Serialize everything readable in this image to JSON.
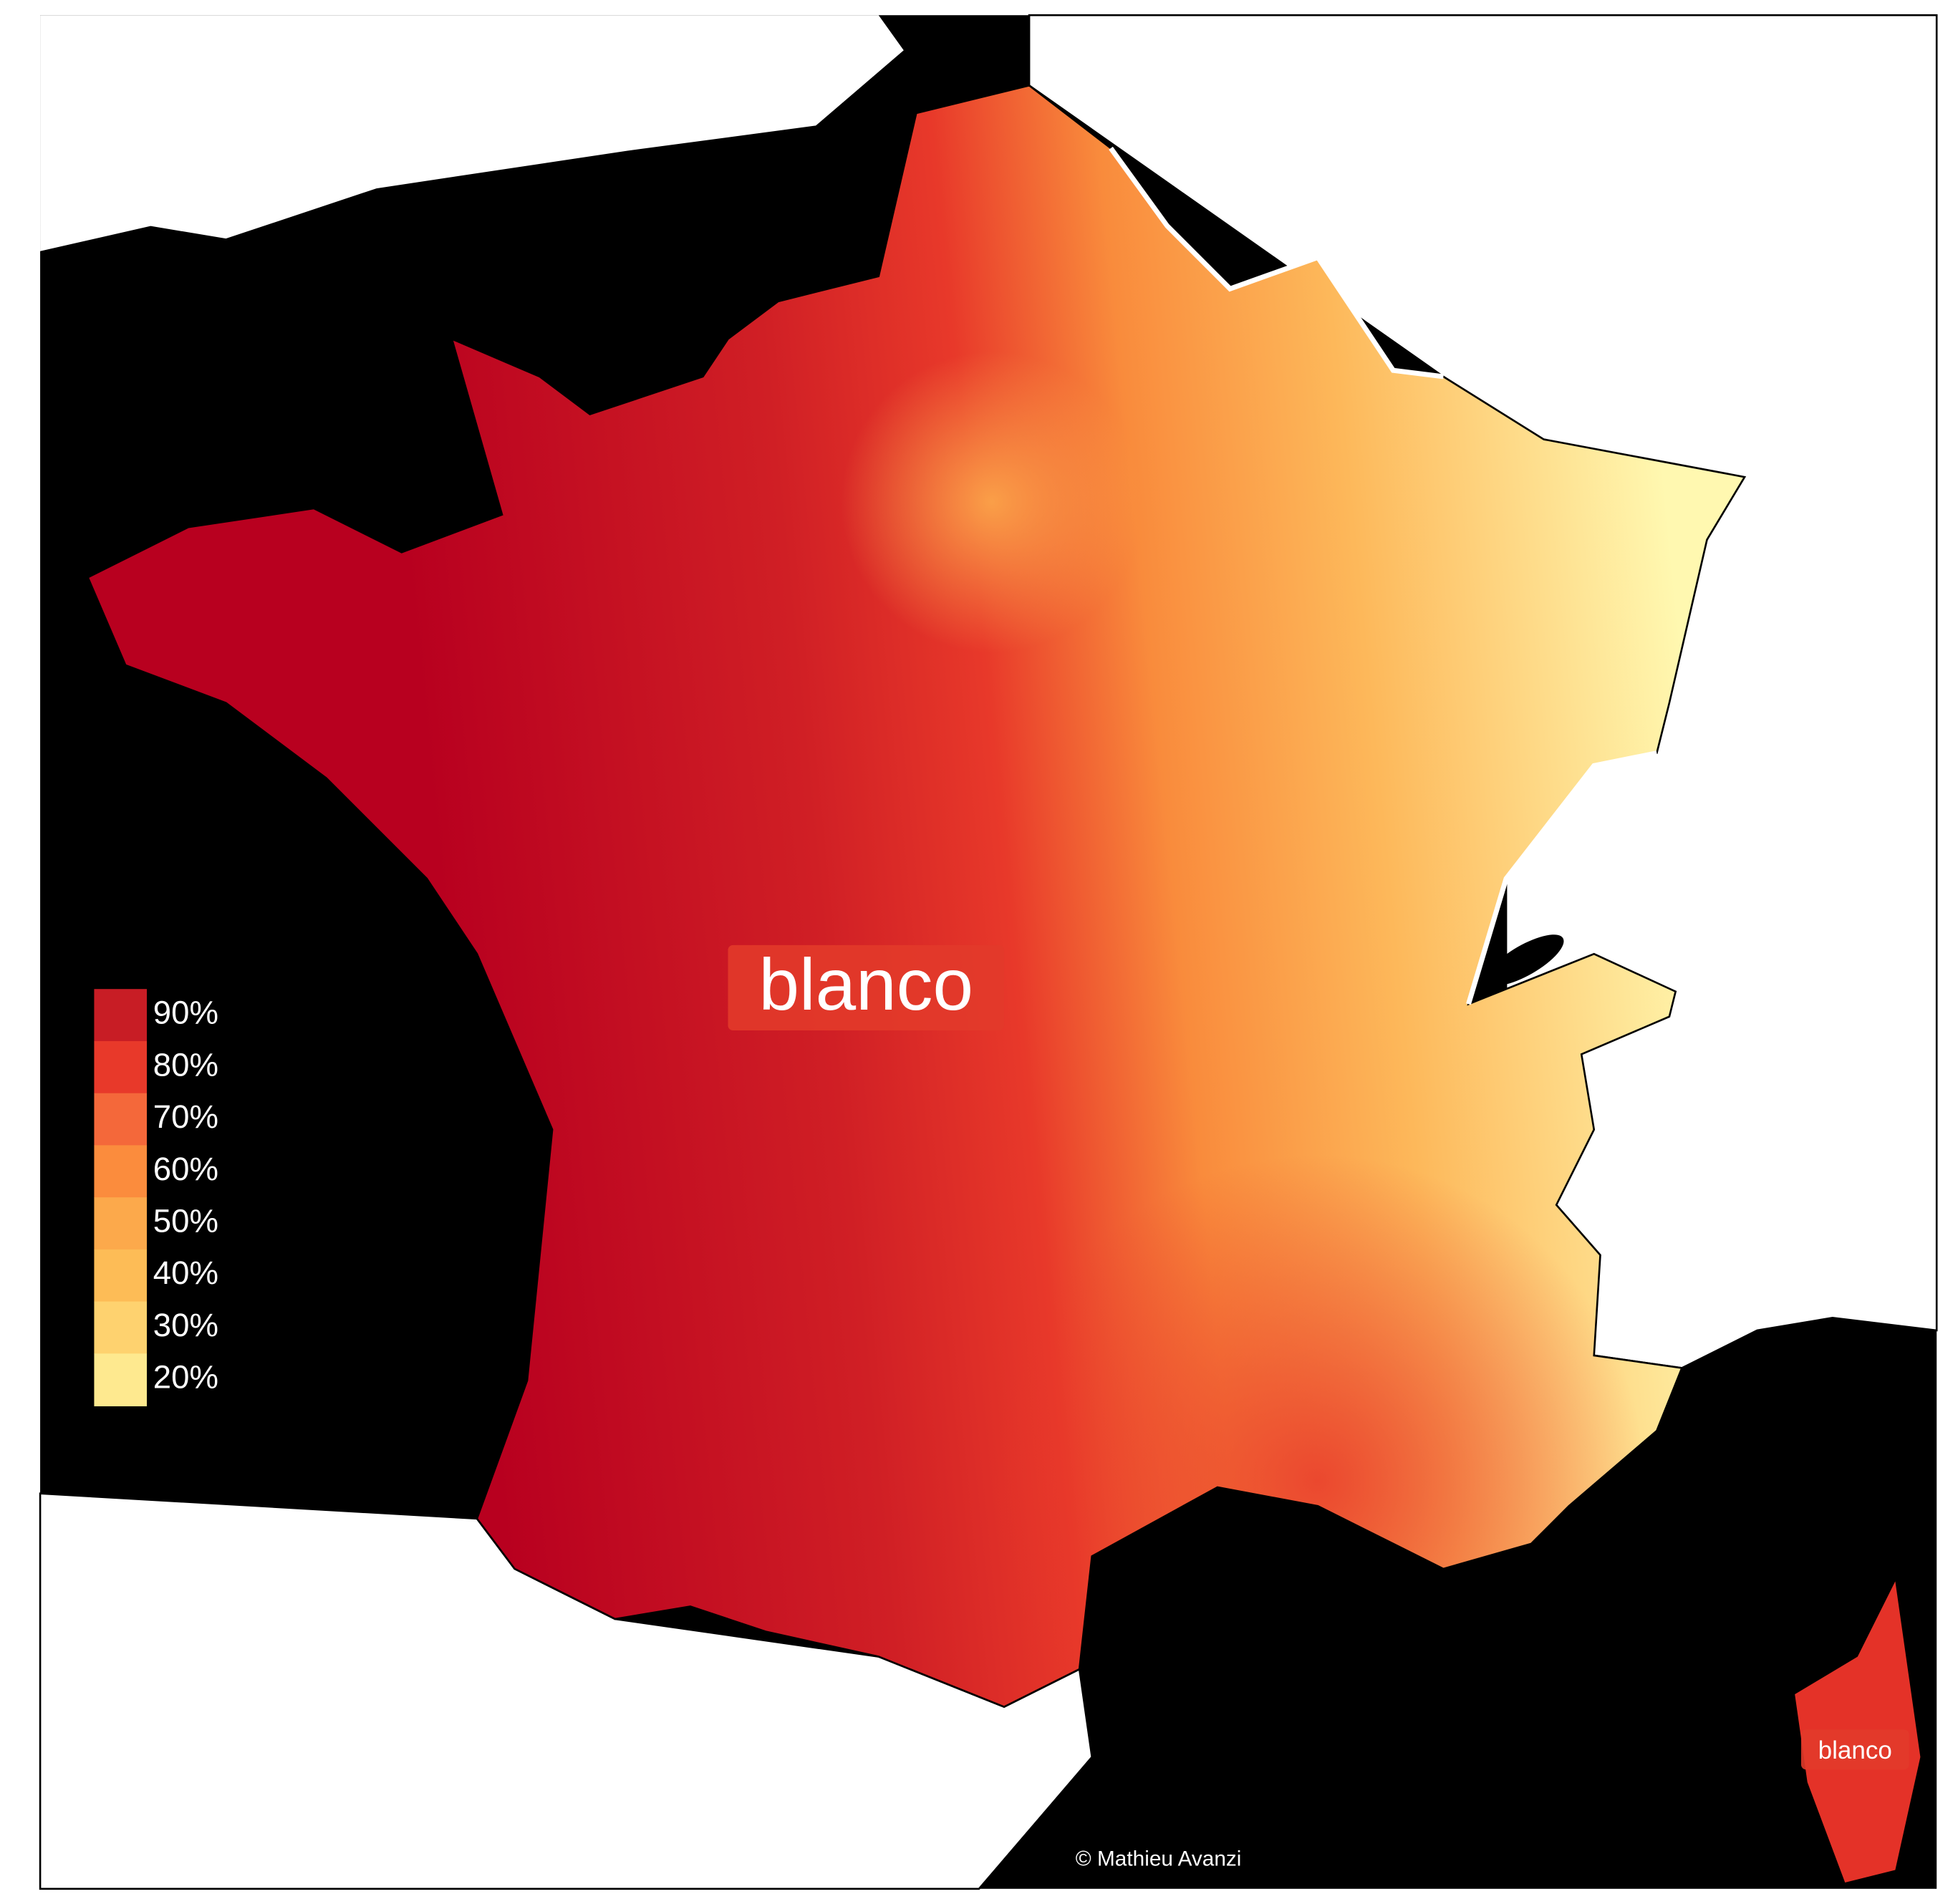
{
  "map": {
    "labels": [
      "blanco",
      "blanco"
    ],
    "legend": {
      "items": [
        {
          "value": 90,
          "label": "90%",
          "color": "#c81d25"
        },
        {
          "value": 80,
          "label": "80%",
          "color": "#e8392a"
        },
        {
          "value": 70,
          "label": "70%",
          "color": "#f4683a"
        },
        {
          "value": 60,
          "label": "60%",
          "color": "#fb8c3d"
        },
        {
          "value": 50,
          "label": "50%",
          "color": "#fca94b"
        },
        {
          "value": 40,
          "label": "40%",
          "color": "#fdbc56"
        },
        {
          "value": 30,
          "label": "30%",
          "color": "#fed26f"
        },
        {
          "value": 20,
          "label": "20%",
          "color": "#fee98f"
        }
      ]
    },
    "credit": "© Mathieu Avanzi"
  }
}
